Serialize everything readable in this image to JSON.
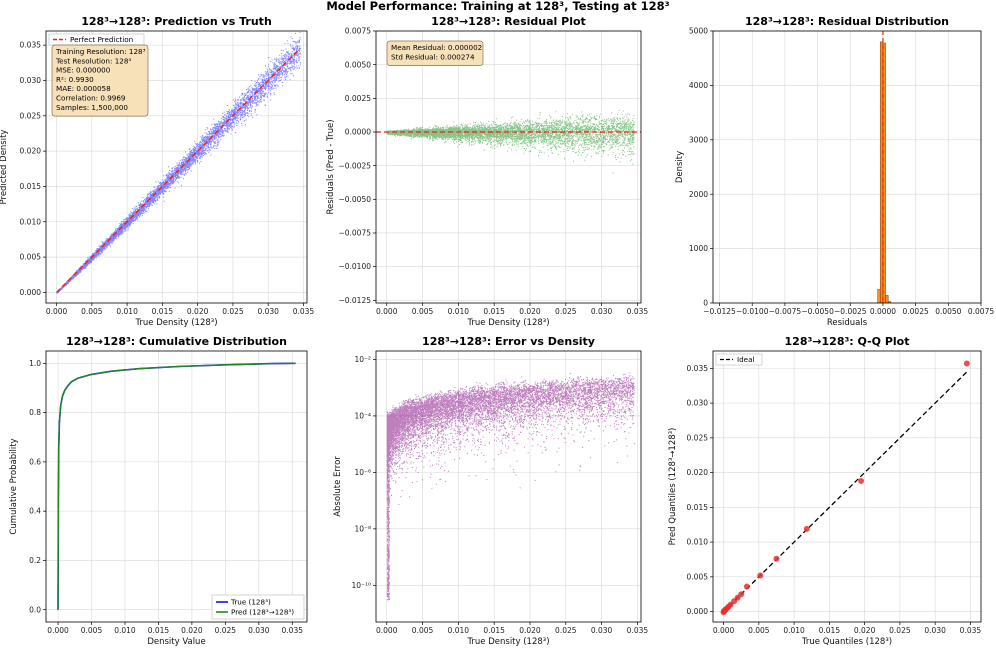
{
  "figure": {
    "suptitle": "Model Performance: Training at 128³, Testing at 128³"
  },
  "chart_data": [
    {
      "id": "pred_vs_truth",
      "type": "scatter",
      "title": "128³→128³: Prediction vs Truth",
      "xlabel": "True Density (128³)",
      "ylabel": "Predicted Density",
      "xlim": [
        -0.0015,
        0.0355
      ],
      "ylim": [
        -0.0015,
        0.037
      ],
      "xticks": [
        0.0,
        0.005,
        0.01,
        0.015,
        0.02,
        0.025,
        0.03,
        0.035
      ],
      "xtick_labels": [
        "0.000",
        "0.005",
        "0.010",
        "0.015",
        "0.020",
        "0.025",
        "0.030",
        "0.035"
      ],
      "yticks": [
        0.0,
        0.005,
        0.01,
        0.015,
        0.02,
        0.025,
        0.03,
        0.035
      ],
      "ytick_labels": [
        "0.000",
        "0.005",
        "0.010",
        "0.015",
        "0.020",
        "0.025",
        "0.030",
        "0.035"
      ],
      "grid": true,
      "scatter_color": "#1f1fff",
      "reference_line": {
        "label": "Perfect Prediction",
        "x": [
          0.0,
          0.0345
        ],
        "y": [
          0.0,
          0.0345
        ],
        "color": "#e8221b"
      },
      "legend": {
        "location": "top-left",
        "entries": [
          "Perfect Prediction"
        ]
      },
      "info_box": [
        "Training Resolution: 128³",
        "Test Resolution: 128³",
        "MSE: 0.000000",
        "R²: 0.9930",
        "MAE: 0.000058",
        "Correlation: 0.9969",
        "Samples: 1,500,000"
      ]
    },
    {
      "id": "residual_plot",
      "type": "scatter",
      "title": "128³→128³: Residual Plot",
      "xlabel": "True Density (128³)",
      "ylabel": "Residuals (Pred - True)",
      "xlim": [
        -0.0015,
        0.0355
      ],
      "ylim": [
        -0.0127,
        0.0075
      ],
      "xticks": [
        0.0,
        0.005,
        0.01,
        0.015,
        0.02,
        0.025,
        0.03,
        0.035
      ],
      "xtick_labels": [
        "0.000",
        "0.005",
        "0.010",
        "0.015",
        "0.020",
        "0.025",
        "0.030",
        "0.035"
      ],
      "yticks": [
        -0.0125,
        -0.01,
        -0.0075,
        -0.005,
        -0.0025,
        0.0,
        0.0025,
        0.005,
        0.0075
      ],
      "ytick_labels": [
        "−0.0125",
        "−0.0100",
        "−0.0075",
        "−0.0050",
        "−0.0025",
        "0.0000",
        "0.0025",
        "0.0050",
        "0.0075"
      ],
      "grid": true,
      "scatter_color": "#128a12",
      "zero_line_color": "#e8221b",
      "info_box": [
        "Mean Residual: 0.000002",
        "Std Residual: 0.000274"
      ]
    },
    {
      "id": "residual_distribution",
      "type": "bar",
      "title": "128³→128³: Residual Distribution",
      "xlabel": "Residuals",
      "ylabel": "Density",
      "xlim": [
        -0.013,
        0.0075
      ],
      "ylim": [
        0,
        5000
      ],
      "xticks": [
        -0.0125,
        -0.01,
        -0.0075,
        -0.005,
        -0.0025,
        0.0,
        0.0025,
        0.005,
        0.0075
      ],
      "xtick_labels": [
        "−0.0125",
        "−0.0100",
        "−0.0075",
        "−0.0050",
        "−0.0025",
        "0.0000",
        "0.0025",
        "0.0050",
        "0.0075"
      ],
      "yticks": [
        0,
        1000,
        2000,
        3000,
        4000,
        5000
      ],
      "ytick_labels": [
        "0",
        "1000",
        "2000",
        "3000",
        "4000",
        "5000"
      ],
      "grid": true,
      "bar_color": "#ff8c1a",
      "bins": [
        {
          "x0": -0.0004,
          "x1": -0.0002,
          "value": 250
        },
        {
          "x0": -0.0002,
          "x1": 0.0,
          "value": 4800
        },
        {
          "x0": 0.0,
          "x1": 0.0002,
          "value": 4780
        },
        {
          "x0": 0.0002,
          "x1": 0.0004,
          "value": 140
        },
        {
          "x0": 0.0004,
          "x1": 0.0006,
          "value": 25
        }
      ],
      "zero_line_color": "#e8221b"
    },
    {
      "id": "cumulative_distribution",
      "type": "line",
      "title": "128³→128³: Cumulative Distribution",
      "xlabel": "Density Value",
      "ylabel": "Cumulative Probability",
      "xlim": [
        -0.0018,
        0.0372
      ],
      "ylim": [
        -0.05,
        1.05
      ],
      "xticks": [
        0.0,
        0.005,
        0.01,
        0.015,
        0.02,
        0.025,
        0.03,
        0.035
      ],
      "xtick_labels": [
        "0.000",
        "0.005",
        "0.010",
        "0.015",
        "0.020",
        "0.025",
        "0.030",
        "0.035"
      ],
      "yticks": [
        0.0,
        0.2,
        0.4,
        0.6,
        0.8,
        1.0
      ],
      "ytick_labels": [
        "0.0",
        "0.2",
        "0.4",
        "0.6",
        "0.8",
        "1.0"
      ],
      "grid": true,
      "series": [
        {
          "name": "True (128³)",
          "color": "#1515e0",
          "x": [
            0.0,
            5e-05,
            0.0001,
            0.0002,
            0.0004,
            0.0007,
            0.001,
            0.0015,
            0.002,
            0.003,
            0.005,
            0.008,
            0.012,
            0.018,
            0.025,
            0.032,
            0.0355
          ],
          "y": [
            0.0,
            0.45,
            0.65,
            0.76,
            0.83,
            0.87,
            0.89,
            0.91,
            0.925,
            0.94,
            0.955,
            0.968,
            0.978,
            0.987,
            0.994,
            0.999,
            1.0
          ]
        },
        {
          "name": "Pred (128³→128³)",
          "color": "#1e8a1e",
          "x": [
            0.0,
            5e-05,
            0.0001,
            0.0002,
            0.0004,
            0.0007,
            0.001,
            0.0015,
            0.002,
            0.003,
            0.005,
            0.008,
            0.012,
            0.018,
            0.025,
            0.032,
            0.0355
          ],
          "y": [
            0.0,
            0.45,
            0.65,
            0.76,
            0.83,
            0.87,
            0.89,
            0.91,
            0.925,
            0.94,
            0.955,
            0.968,
            0.978,
            0.987,
            0.994,
            0.999,
            1.0
          ]
        }
      ],
      "legend": {
        "location": "bottom-right"
      }
    },
    {
      "id": "error_vs_density",
      "type": "scatter",
      "title": "128³→128³: Error vs Density",
      "xlabel": "True Density (128³)",
      "ylabel": "Absolute Error",
      "yscale": "log",
      "xlim": [
        -0.0015,
        0.0355
      ],
      "ylim_log10": [
        -11.3,
        -1.7
      ],
      "xticks": [
        0.0,
        0.005,
        0.01,
        0.015,
        0.02,
        0.025,
        0.03,
        0.035
      ],
      "xtick_labels": [
        "0.000",
        "0.005",
        "0.010",
        "0.015",
        "0.020",
        "0.025",
        "0.030",
        "0.035"
      ],
      "yticks_log10": [
        -10,
        -8,
        -6,
        -4,
        -2
      ],
      "ytick_labels": [
        "10⁻¹⁰",
        "10⁻⁸",
        "10⁻⁶",
        "10⁻⁴",
        "10⁻²"
      ],
      "grid": true,
      "scatter_color": "#800080"
    },
    {
      "id": "qq_plot",
      "type": "scatter",
      "title": "128³→128³: Q-Q Plot",
      "xlabel": "True Quantiles (128³)",
      "ylabel": "Pred Quantiles (128³→128³)",
      "xlim": [
        -0.0015,
        0.0365
      ],
      "ylim": [
        -0.0015,
        0.0375
      ],
      "xticks": [
        0.0,
        0.005,
        0.01,
        0.015,
        0.02,
        0.025,
        0.03,
        0.035
      ],
      "xtick_labels": [
        "0.000",
        "0.005",
        "0.010",
        "0.015",
        "0.020",
        "0.025",
        "0.030",
        "0.035"
      ],
      "yticks": [
        0.0,
        0.005,
        0.01,
        0.015,
        0.02,
        0.025,
        0.03,
        0.035
      ],
      "ytick_labels": [
        "0.000",
        "0.005",
        "0.010",
        "0.015",
        "0.020",
        "0.025",
        "0.030",
        "0.035"
      ],
      "grid": true,
      "point_color": "#e83030",
      "ideal_line": {
        "label": "Ideal",
        "x": [
          0.0,
          0.0345
        ],
        "y": [
          0.0,
          0.0345
        ],
        "color": "#000000"
      },
      "points": {
        "x": [
          0.0,
          5e-05,
          0.0001,
          0.0002,
          0.0003,
          0.0005,
          0.0007,
          0.001,
          0.0015,
          0.002,
          0.0025,
          0.0033,
          0.0052,
          0.0075,
          0.0118,
          0.0195,
          0.0345
        ],
        "y": [
          -0.0001,
          5e-05,
          0.0001,
          0.0002,
          0.0003,
          0.0005,
          0.0007,
          0.001,
          0.0015,
          0.002,
          0.0025,
          0.0036,
          0.0052,
          0.0076,
          0.0119,
          0.0188,
          0.0357
        ]
      },
      "legend": {
        "location": "top-left",
        "entries": [
          "Ideal"
        ]
      }
    }
  ]
}
